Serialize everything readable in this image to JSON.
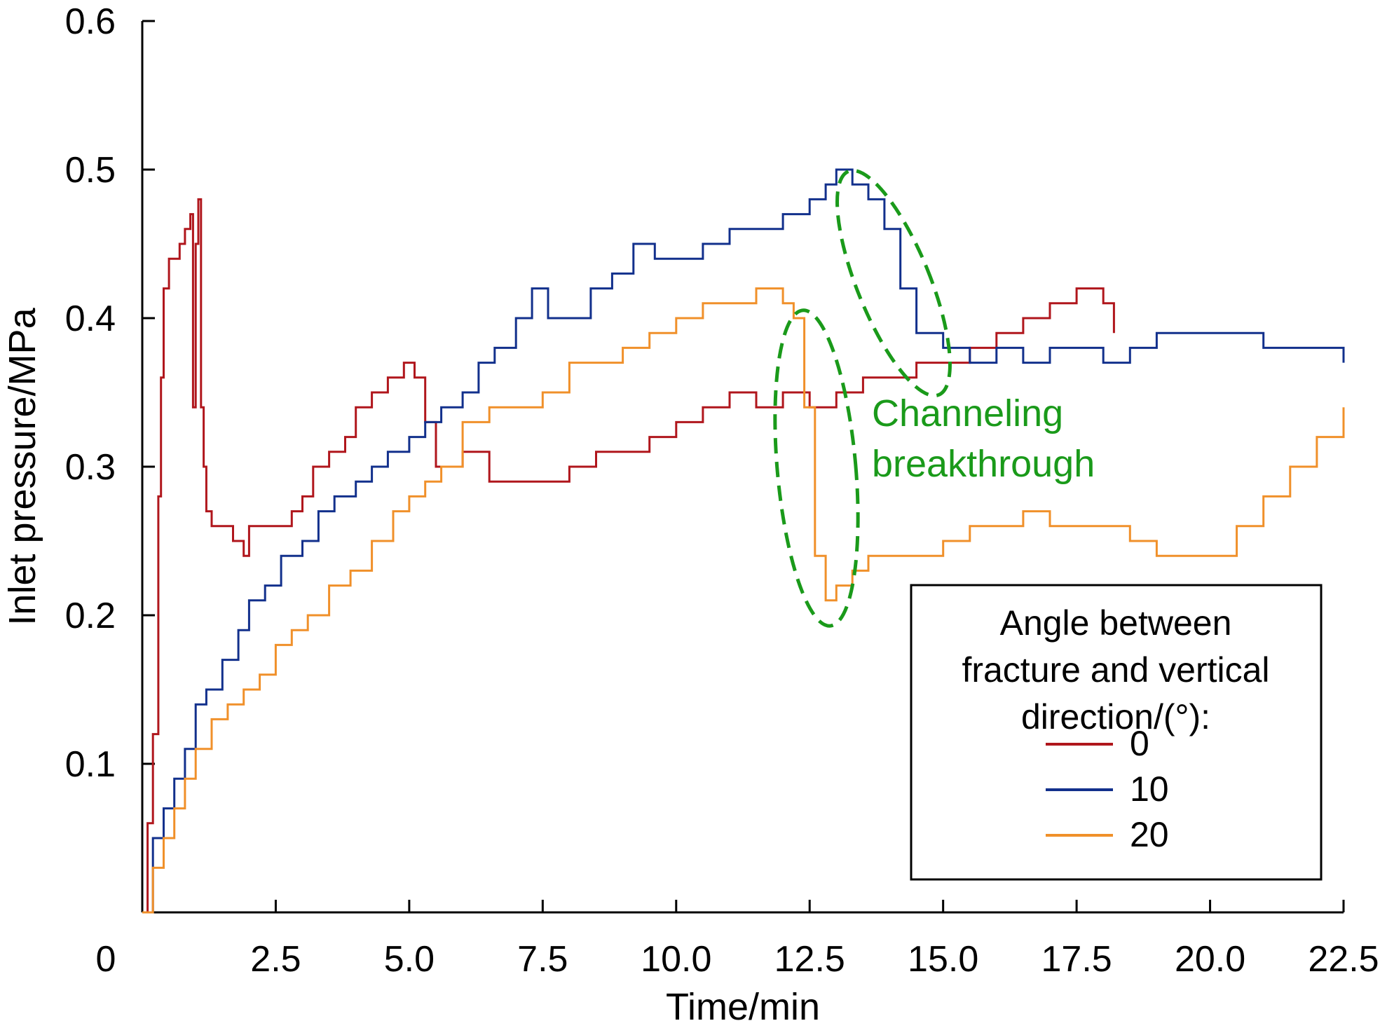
{
  "chart_data": {
    "type": "line",
    "xlabel": "Time/min",
    "ylabel": "Inlet pressure/MPa",
    "xlim": [
      0,
      22.5
    ],
    "ylim": [
      0,
      0.6
    ],
    "xticks": [
      0,
      2.5,
      5.0,
      7.5,
      10.0,
      12.5,
      15.0,
      17.5,
      20.0,
      22.5
    ],
    "xtick_labels": [
      "0",
      "2.5",
      "5.0",
      "7.5",
      "10.0",
      "12.5",
      "15.0",
      "17.5",
      "20.0",
      "22.5"
    ],
    "yticks": [
      0.1,
      0.2,
      0.3,
      0.4,
      0.5,
      0.6
    ],
    "ytick_labels": [
      "0.1",
      "0.2",
      "0.3",
      "0.4",
      "0.5",
      "0.6"
    ],
    "grid": false,
    "legend": {
      "title_lines": [
        "Angle between",
        "fracture and vertical",
        "direction/(°):"
      ],
      "position": "lower-right"
    },
    "annotation": {
      "text_lines": [
        "Channeling",
        "breakthrough"
      ],
      "color": "#1a9a1a"
    },
    "series": [
      {
        "name": "0",
        "color": "#b0161c",
        "x": [
          0,
          0.1,
          0.2,
          0.3,
          0.35,
          0.4,
          0.5,
          0.6,
          0.7,
          0.8,
          0.9,
          0.95,
          1.0,
          1.05,
          1.1,
          1.15,
          1.2,
          1.3,
          1.5,
          1.7,
          1.9,
          2.0,
          2.2,
          2.5,
          2.8,
          3.0,
          3.2,
          3.5,
          3.8,
          4.0,
          4.3,
          4.6,
          4.9,
          5.1,
          5.3,
          5.5,
          5.8,
          6.0,
          6.5,
          7.0,
          7.5,
          8.0,
          8.5,
          9.0,
          9.5,
          10.0,
          10.5,
          11.0,
          11.5,
          12.0,
          12.5,
          13.0,
          13.5,
          14.0,
          14.5,
          15.0,
          15.5,
          16.0,
          16.5,
          17.0,
          17.5,
          18.0,
          18.2
        ],
        "y": [
          0.0,
          0.06,
          0.12,
          0.28,
          0.36,
          0.42,
          0.44,
          0.44,
          0.45,
          0.46,
          0.47,
          0.34,
          0.45,
          0.48,
          0.34,
          0.3,
          0.27,
          0.26,
          0.26,
          0.25,
          0.24,
          0.26,
          0.26,
          0.26,
          0.27,
          0.28,
          0.3,
          0.31,
          0.32,
          0.34,
          0.35,
          0.36,
          0.37,
          0.36,
          0.33,
          0.3,
          0.3,
          0.31,
          0.29,
          0.29,
          0.29,
          0.3,
          0.31,
          0.31,
          0.32,
          0.33,
          0.34,
          0.35,
          0.34,
          0.35,
          0.34,
          0.35,
          0.36,
          0.36,
          0.37,
          0.37,
          0.38,
          0.39,
          0.4,
          0.41,
          0.42,
          0.41,
          0.39
        ]
      },
      {
        "name": "10",
        "color": "#12308c",
        "x": [
          0,
          0.2,
          0.4,
          0.6,
          0.8,
          1.0,
          1.2,
          1.5,
          1.8,
          2.0,
          2.3,
          2.6,
          3.0,
          3.3,
          3.6,
          4.0,
          4.3,
          4.6,
          5.0,
          5.3,
          5.6,
          6.0,
          6.3,
          6.6,
          7.0,
          7.3,
          7.6,
          8.0,
          8.4,
          8.8,
          9.2,
          9.6,
          10.0,
          10.5,
          11.0,
          11.5,
          12.0,
          12.5,
          12.8,
          13.0,
          13.3,
          13.6,
          13.9,
          14.2,
          14.5,
          15.0,
          15.5,
          16.0,
          16.5,
          17.0,
          17.5,
          18.0,
          18.5,
          19.0,
          19.5,
          20.0,
          20.5,
          21.0,
          21.5,
          22.0,
          22.5
        ],
        "y": [
          0.0,
          0.05,
          0.07,
          0.09,
          0.11,
          0.14,
          0.15,
          0.17,
          0.19,
          0.21,
          0.22,
          0.24,
          0.25,
          0.27,
          0.28,
          0.29,
          0.3,
          0.31,
          0.32,
          0.33,
          0.34,
          0.35,
          0.37,
          0.38,
          0.4,
          0.42,
          0.4,
          0.4,
          0.42,
          0.43,
          0.45,
          0.44,
          0.44,
          0.45,
          0.46,
          0.46,
          0.47,
          0.48,
          0.49,
          0.5,
          0.49,
          0.48,
          0.46,
          0.42,
          0.39,
          0.38,
          0.37,
          0.38,
          0.37,
          0.38,
          0.38,
          0.37,
          0.38,
          0.39,
          0.39,
          0.39,
          0.39,
          0.38,
          0.38,
          0.38,
          0.37
        ]
      },
      {
        "name": "20",
        "color": "#f0902a",
        "x": [
          0,
          0.2,
          0.4,
          0.6,
          0.8,
          1.0,
          1.3,
          1.6,
          1.9,
          2.2,
          2.5,
          2.8,
          3.1,
          3.5,
          3.9,
          4.3,
          4.7,
          5.0,
          5.3,
          5.6,
          6.0,
          6.5,
          7.0,
          7.5,
          8.0,
          8.5,
          9.0,
          9.5,
          10.0,
          10.5,
          11.0,
          11.5,
          12.0,
          12.2,
          12.4,
          12.6,
          12.8,
          13.0,
          13.3,
          13.6,
          14.0,
          14.5,
          15.0,
          15.5,
          16.0,
          16.5,
          17.0,
          17.5,
          18.0,
          18.5,
          19.0,
          19.5,
          20.0,
          20.5,
          21.0,
          21.5,
          22.0,
          22.5
        ],
        "y": [
          0.0,
          0.03,
          0.05,
          0.07,
          0.09,
          0.11,
          0.13,
          0.14,
          0.15,
          0.16,
          0.18,
          0.19,
          0.2,
          0.22,
          0.23,
          0.25,
          0.27,
          0.28,
          0.29,
          0.3,
          0.33,
          0.34,
          0.34,
          0.35,
          0.37,
          0.37,
          0.38,
          0.39,
          0.4,
          0.41,
          0.41,
          0.42,
          0.41,
          0.4,
          0.34,
          0.24,
          0.21,
          0.22,
          0.23,
          0.24,
          0.24,
          0.24,
          0.25,
          0.26,
          0.26,
          0.27,
          0.26,
          0.26,
          0.26,
          0.25,
          0.24,
          0.24,
          0.24,
          0.26,
          0.28,
          0.3,
          0.32,
          0.34
        ]
      }
    ]
  }
}
